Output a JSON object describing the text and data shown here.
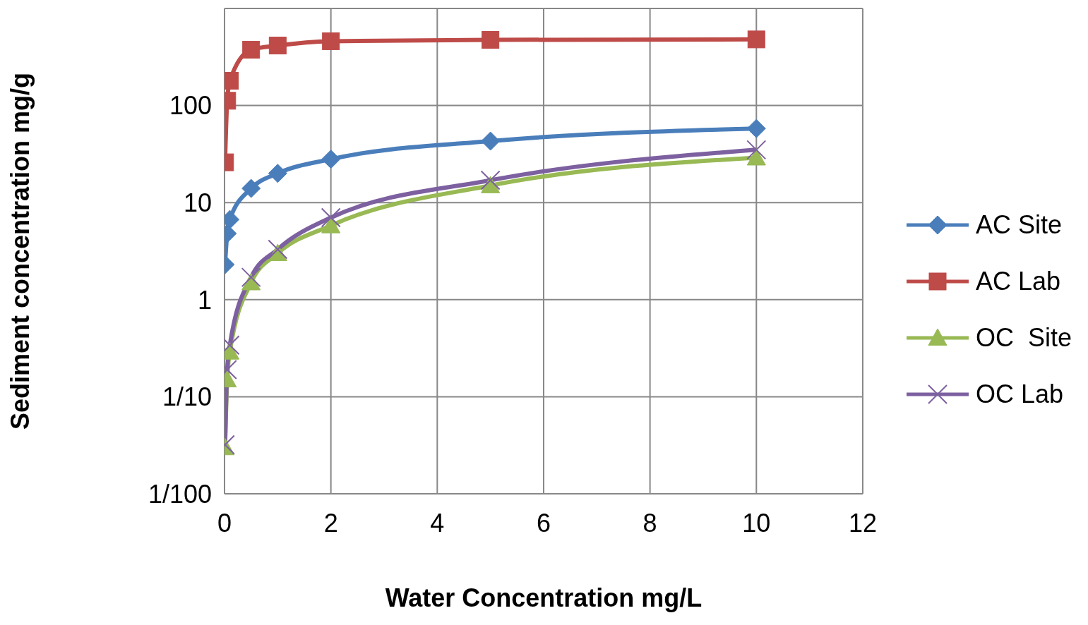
{
  "chart_data": {
    "type": "line",
    "xlabel": "Water Concentration  mg/L",
    "ylabel": "Sediment concentration  mg/g",
    "log": "y",
    "grid": true,
    "legend": "right",
    "line_style": "solid",
    "xlim": [
      0,
      12
    ],
    "xticks": [
      0,
      2,
      4,
      6,
      8,
      10,
      12
    ],
    "ylim": [
      0.01,
      1000
    ],
    "yticks": [
      {
        "value": 0.01,
        "label": "1/100"
      },
      {
        "value": 0.1,
        "label": "1/10"
      },
      1,
      10,
      100,
      {
        "value": 1000,
        "label": null
      }
    ],
    "x": [
      0.01,
      0.05,
      0.1,
      0.5,
      1,
      2,
      5,
      10
    ],
    "series": [
      {
        "name": "AC Site",
        "color": "#4a7ebb",
        "marker": "diamond",
        "values": [
          2.3,
          4.8,
          6.7,
          14,
          20,
          28,
          43,
          58
        ]
      },
      {
        "name": "AC Lab",
        "color": "#be4b48",
        "marker": "square",
        "values": [
          26,
          112,
          180,
          376,
          415,
          460,
          475,
          480
        ]
      },
      {
        "name": "OC  Site",
        "color": "#98b954",
        "marker": "triangle",
        "values": [
          0.03,
          0.15,
          0.29,
          1.5,
          3,
          5.8,
          15,
          29
        ]
      },
      {
        "name": "OC Lab",
        "color": "#7d60a0",
        "marker": "cross",
        "values": [
          0.032,
          0.19,
          0.34,
          1.7,
          3.3,
          7,
          17,
          35
        ]
      }
    ]
  }
}
